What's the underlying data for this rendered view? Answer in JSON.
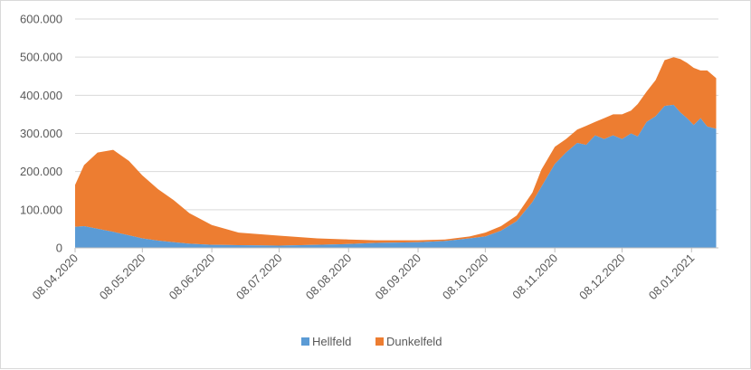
{
  "chart_data": {
    "type": "area",
    "stacked": true,
    "title": "",
    "xlabel": "",
    "ylabel": "",
    "ylim": [
      0,
      600000
    ],
    "y_ticks": [
      0,
      100000,
      200000,
      300000,
      400000,
      500000,
      600000
    ],
    "y_tick_labels": [
      "0",
      "100.000",
      "200.000",
      "300.000",
      "400.000",
      "500.000",
      "600.000"
    ],
    "x_range": [
      "2020-04-08",
      "2021-01-20"
    ],
    "x_ticks": [
      "2020-04-08",
      "2020-05-08",
      "2020-06-08",
      "2020-07-08",
      "2020-08-08",
      "2020-09-08",
      "2020-10-08",
      "2020-11-08",
      "2020-12-08",
      "2021-01-08"
    ],
    "x_tick_labels": [
      "08.04.2020",
      "08.05.2020",
      "08.06.2020",
      "08.07.2020",
      "08.08.2020",
      "08.09.2020",
      "08.10.2020",
      "08.11.2020",
      "08.12.2020",
      "08.01.2021"
    ],
    "grid": true,
    "legend_position": "bottom",
    "series": [
      {
        "name": "Hellfeld",
        "color": "#5B9BD5",
        "points": [
          [
            "2020-04-08",
            55000
          ],
          [
            "2020-04-12",
            57000
          ],
          [
            "2020-04-18",
            50000
          ],
          [
            "2020-04-25",
            42000
          ],
          [
            "2020-05-02",
            33000
          ],
          [
            "2020-05-08",
            25000
          ],
          [
            "2020-05-15",
            19000
          ],
          [
            "2020-05-22",
            15000
          ],
          [
            "2020-05-29",
            11000
          ],
          [
            "2020-06-08",
            8000
          ],
          [
            "2020-06-20",
            7000
          ],
          [
            "2020-07-08",
            6000
          ],
          [
            "2020-07-25",
            8000
          ],
          [
            "2020-08-08",
            10000
          ],
          [
            "2020-08-20",
            13000
          ],
          [
            "2020-09-08",
            15000
          ],
          [
            "2020-09-20",
            18000
          ],
          [
            "2020-10-01",
            25000
          ],
          [
            "2020-10-08",
            30000
          ],
          [
            "2020-10-15",
            45000
          ],
          [
            "2020-10-22",
            70000
          ],
          [
            "2020-10-29",
            120000
          ],
          [
            "2020-11-02",
            160000
          ],
          [
            "2020-11-08",
            220000
          ],
          [
            "2020-11-13",
            250000
          ],
          [
            "2020-11-18",
            275000
          ],
          [
            "2020-11-22",
            270000
          ],
          [
            "2020-11-26",
            295000
          ],
          [
            "2020-11-30",
            285000
          ],
          [
            "2020-12-04",
            295000
          ],
          [
            "2020-12-08",
            285000
          ],
          [
            "2020-12-12",
            300000
          ],
          [
            "2020-12-15",
            292000
          ],
          [
            "2020-12-19",
            330000
          ],
          [
            "2020-12-23",
            345000
          ],
          [
            "2020-12-27",
            372000
          ],
          [
            "2020-12-31",
            375000
          ],
          [
            "2021-01-03",
            355000
          ],
          [
            "2021-01-06",
            340000
          ],
          [
            "2021-01-09",
            322000
          ],
          [
            "2021-01-12",
            340000
          ],
          [
            "2021-01-15",
            318000
          ],
          [
            "2021-01-19",
            312000
          ]
        ]
      },
      {
        "name": "Dunkelfeld",
        "color": "#ED7D31",
        "points": [
          [
            "2020-04-08",
            110000
          ],
          [
            "2020-04-12",
            160000
          ],
          [
            "2020-04-18",
            200000
          ],
          [
            "2020-04-25",
            215000
          ],
          [
            "2020-05-02",
            195000
          ],
          [
            "2020-05-08",
            165000
          ],
          [
            "2020-05-15",
            135000
          ],
          [
            "2020-05-22",
            110000
          ],
          [
            "2020-05-29",
            80000
          ],
          [
            "2020-06-08",
            52000
          ],
          [
            "2020-06-20",
            33000
          ],
          [
            "2020-07-08",
            26000
          ],
          [
            "2020-07-25",
            17000
          ],
          [
            "2020-08-08",
            12000
          ],
          [
            "2020-08-20",
            7000
          ],
          [
            "2020-09-08",
            5000
          ],
          [
            "2020-09-20",
            4000
          ],
          [
            "2020-10-01",
            5000
          ],
          [
            "2020-10-08",
            10000
          ],
          [
            "2020-10-15",
            12000
          ],
          [
            "2020-10-22",
            15000
          ],
          [
            "2020-10-29",
            25000
          ],
          [
            "2020-11-02",
            45000
          ],
          [
            "2020-11-08",
            45000
          ],
          [
            "2020-11-13",
            35000
          ],
          [
            "2020-11-18",
            35000
          ],
          [
            "2020-11-22",
            50000
          ],
          [
            "2020-11-26",
            35000
          ],
          [
            "2020-11-30",
            55000
          ],
          [
            "2020-12-04",
            55000
          ],
          [
            "2020-12-08",
            65000
          ],
          [
            "2020-12-12",
            60000
          ],
          [
            "2020-12-15",
            85000
          ],
          [
            "2020-12-19",
            80000
          ],
          [
            "2020-12-23",
            95000
          ],
          [
            "2020-12-27",
            120000
          ],
          [
            "2020-12-31",
            125000
          ],
          [
            "2021-01-03",
            140000
          ],
          [
            "2021-01-06",
            145000
          ],
          [
            "2021-01-09",
            150000
          ],
          [
            "2021-01-12",
            125000
          ],
          [
            "2021-01-15",
            147000
          ],
          [
            "2021-01-19",
            133000
          ]
        ]
      }
    ]
  }
}
